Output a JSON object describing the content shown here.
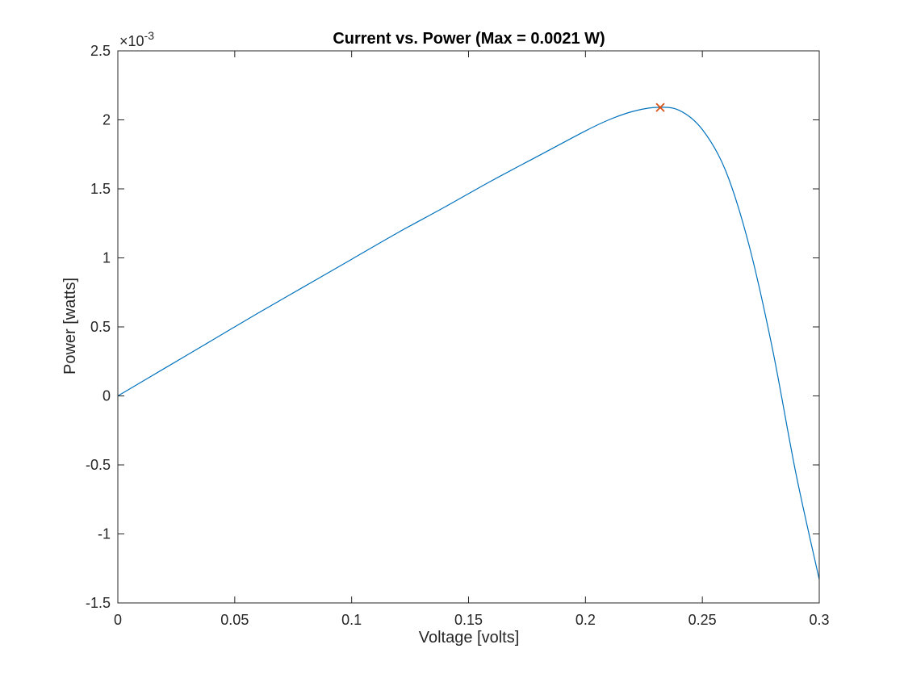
{
  "chart_data": {
    "type": "line",
    "title": "Current vs. Power (Max = 0.0021 W)",
    "xlabel": "Voltage [volts]",
    "ylabel": "Power [watts]",
    "xlim": [
      0,
      0.3
    ],
    "ylim": [
      -1.5,
      2.5
    ],
    "y_scale_factor_label": "×10",
    "y_scale_factor_exponent": "-3",
    "x_ticks": [
      0,
      0.05,
      0.1,
      0.15,
      0.2,
      0.25,
      0.3
    ],
    "x_tick_labels": [
      "0",
      "0.05",
      "0.1",
      "0.15",
      "0.2",
      "0.25",
      "0.3"
    ],
    "y_ticks": [
      -1.5,
      -1,
      -0.5,
      0,
      0.5,
      1,
      1.5,
      2,
      2.5
    ],
    "y_tick_labels": [
      "-1.5",
      "-1",
      "-0.5",
      "0",
      "0.5",
      "1",
      "1.5",
      "2",
      "2.5"
    ],
    "grid": false,
    "series": [
      {
        "color": "#0072BD",
        "x": [
          0,
          0.02,
          0.04,
          0.06,
          0.08,
          0.1,
          0.12,
          0.14,
          0.16,
          0.18,
          0.2,
          0.21,
          0.22,
          0.23,
          0.24,
          0.25,
          0.26,
          0.27,
          0.28,
          0.29,
          0.3
        ],
        "y": [
          0,
          0.2,
          0.4,
          0.6,
          0.795,
          0.99,
          1.185,
          1.37,
          1.56,
          1.74,
          1.92,
          2.0,
          2.06,
          2.09,
          2.07,
          1.93,
          1.63,
          1.09,
          0.34,
          -0.56,
          -1.33
        ]
      }
    ],
    "marker": {
      "x": 0.232,
      "y": 2.09,
      "symbol": "x",
      "color": "#D95319"
    }
  }
}
